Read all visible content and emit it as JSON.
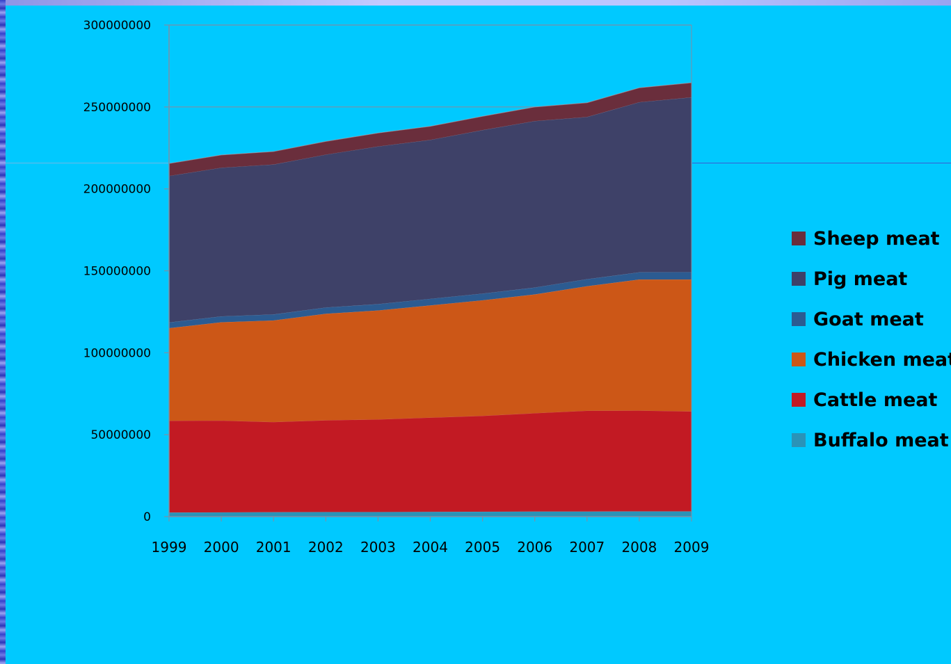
{
  "chart_data": {
    "type": "area",
    "stacked": true,
    "x": [
      "1999",
      "2000",
      "2001",
      "2002",
      "2003",
      "2004",
      "2005",
      "2006",
      "2007",
      "2008",
      "2009"
    ],
    "ylim": [
      0,
      300000000
    ],
    "yticks": [
      "0",
      "50000000",
      "100000000",
      "150000000",
      "200000000",
      "250000000",
      "300000000"
    ],
    "grid": true,
    "legend_position": "right",
    "series": [
      {
        "name": "Buffalo meat",
        "color": "#2a93b8",
        "values": [
          2600000,
          2700000,
          2800000,
          2900000,
          2900000,
          3000000,
          3100000,
          3200000,
          3200000,
          3300000,
          3300000
        ]
      },
      {
        "name": "Cattle meat",
        "color": "#c21a23",
        "values": [
          56000000,
          56000000,
          55000000,
          56000000,
          56500000,
          57500000,
          58500000,
          60000000,
          61500000,
          61500000,
          61000000
        ]
      },
      {
        "name": "Chicken meat",
        "color": "#cc5717",
        "values": [
          56500000,
          60000000,
          62000000,
          65000000,
          66500000,
          68500000,
          70500000,
          72500000,
          76000000,
          80000000,
          80500000
        ]
      },
      {
        "name": "Goat meat",
        "color": "#2c5b91",
        "values": [
          3500000,
          3600000,
          3700000,
          3800000,
          3900000,
          4000000,
          4100000,
          4200000,
          4300000,
          4400000,
          4500000
        ]
      },
      {
        "name": "Pig meat",
        "color": "#3e4168",
        "values": [
          89400000,
          90700000,
          91500000,
          93300000,
          96200000,
          97000000,
          99800000,
          101600000,
          99000000,
          103800000,
          106700000
        ]
      },
      {
        "name": "Sheep meat",
        "color": "#6a2e3c",
        "values": [
          7500000,
          7700000,
          7800000,
          8000000,
          8100000,
          8200000,
          8300000,
          8500000,
          8600000,
          8700000,
          8800000
        ]
      }
    ]
  }
}
